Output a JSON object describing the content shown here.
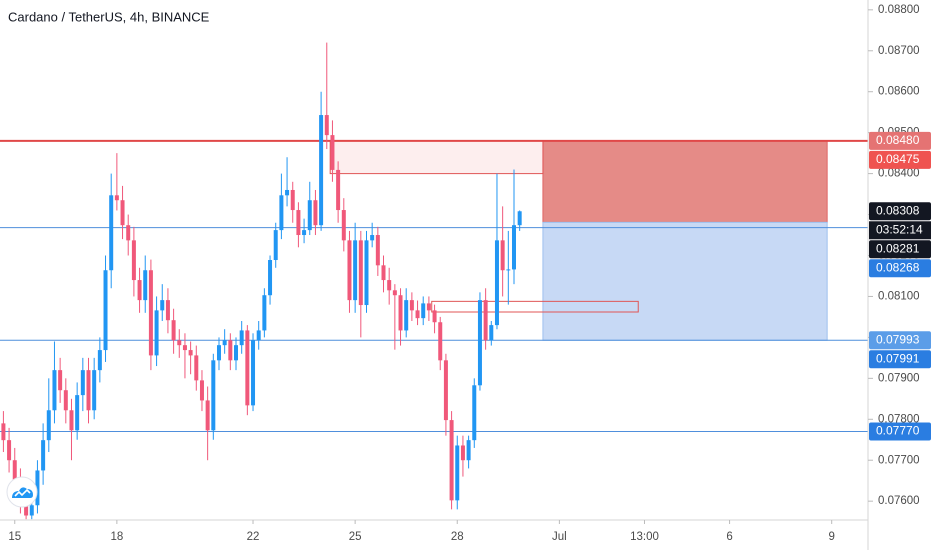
{
  "chart_data": {
    "type": "candlestick",
    "title": "Cardano / TetherUS, 4h, BINANCE",
    "up_color": "#2196f3",
    "down_color": "#f0587a",
    "xlim": [
      -2.6,
      150.4
    ],
    "xticks": [
      {
        "value": 0,
        "label": "15"
      },
      {
        "value": 18,
        "label": "18"
      },
      {
        "value": 42,
        "label": "22"
      },
      {
        "value": 60,
        "label": "25"
      },
      {
        "value": 78,
        "label": "28"
      },
      {
        "value": 96,
        "label": "Jul"
      },
      {
        "value": 111,
        "label": "13:00"
      },
      {
        "value": 126,
        "label": "6"
      },
      {
        "value": 144,
        "label": "9"
      }
    ],
    "ylim": [
      0.07554,
      0.08824
    ],
    "yticks": [
      {
        "value": 0.076,
        "label": "0.07600"
      },
      {
        "value": 0.077,
        "label": "0.07700"
      },
      {
        "value": 0.078,
        "label": "0.07800"
      },
      {
        "value": 0.079,
        "label": "0.07900"
      },
      {
        "value": 0.08,
        "label": "0.08000"
      },
      {
        "value": 0.081,
        "label": "0.08100"
      },
      {
        "value": 0.082,
        "label": "0.08200"
      },
      {
        "value": 0.083,
        "label": "0.08300"
      },
      {
        "value": 0.084,
        "label": "0.08400"
      },
      {
        "value": 0.085,
        "label": "0.08500"
      },
      {
        "value": 0.086,
        "label": "0.08600"
      },
      {
        "value": 0.087,
        "label": "0.08700"
      },
      {
        "value": 0.088,
        "label": "0.08800"
      }
    ],
    "x": [
      -2,
      -1,
      0,
      1,
      2,
      3,
      4,
      5,
      6,
      7,
      8,
      9,
      10,
      11,
      12,
      13,
      14,
      15,
      16,
      17,
      18,
      19,
      20,
      21,
      22,
      23,
      24,
      25,
      26,
      27,
      28,
      29,
      30,
      31,
      32,
      33,
      34,
      35,
      36,
      37,
      38,
      39,
      40,
      41,
      42,
      43,
      44,
      45,
      46,
      47,
      48,
      49,
      50,
      51,
      52,
      53,
      54,
      55,
      56,
      57,
      58,
      59,
      60,
      61,
      62,
      63,
      64,
      65,
      66,
      67,
      68,
      69,
      70,
      71,
      72,
      73,
      74,
      75,
      76,
      77,
      78,
      79,
      80,
      81,
      82,
      83,
      84,
      85,
      86,
      87,
      88,
      89
    ],
    "candles": [
      [
        0.0779,
        0.0782,
        0.0772,
        0.07749
      ],
      [
        0.07749,
        0.07779,
        0.0767,
        0.077
      ],
      [
        0.077,
        0.0773,
        0.0762,
        0.07651
      ],
      [
        0.07651,
        0.0768,
        0.0757,
        0.07602
      ],
      [
        0.07602,
        0.0763,
        0.07556,
        0.07565
      ],
      [
        0.07565,
        0.0763,
        0.07556,
        0.0759
      ],
      [
        0.0759,
        0.077,
        0.0757,
        0.07675
      ],
      [
        0.07675,
        0.0779,
        0.0764,
        0.07749
      ],
      [
        0.07749,
        0.079,
        0.0772,
        0.07822
      ],
      [
        0.07822,
        0.0799,
        0.0779,
        0.0792
      ],
      [
        0.0792,
        0.0795,
        0.0784,
        0.07871
      ],
      [
        0.07871,
        0.079,
        0.0779,
        0.07822
      ],
      [
        0.07822,
        0.0785,
        0.077,
        0.07773
      ],
      [
        0.07773,
        0.0789,
        0.0775,
        0.07859
      ],
      [
        0.07859,
        0.0795,
        0.0782,
        0.0792
      ],
      [
        0.0792,
        0.0795,
        0.0779,
        0.07822
      ],
      [
        0.07822,
        0.0795,
        0.078,
        0.0792
      ],
      [
        0.0792,
        0.08,
        0.0789,
        0.07969
      ],
      [
        0.07969,
        0.082,
        0.0794,
        0.08164
      ],
      [
        0.08164,
        0.084,
        0.0812,
        0.08347
      ],
      [
        0.08347,
        0.0845,
        0.0831,
        0.08335
      ],
      [
        0.08335,
        0.0837,
        0.0824,
        0.08274
      ],
      [
        0.08274,
        0.083,
        0.082,
        0.08237
      ],
      [
        0.08237,
        0.0827,
        0.081,
        0.0814
      ],
      [
        0.0814,
        0.0817,
        0.0806,
        0.08091
      ],
      [
        0.08091,
        0.082,
        0.0806,
        0.08164
      ],
      [
        0.08164,
        0.0819,
        0.0792,
        0.07956
      ],
      [
        0.07956,
        0.081,
        0.0793,
        0.08066
      ],
      [
        0.08066,
        0.0813,
        0.0804,
        0.08091
      ],
      [
        0.08091,
        0.0812,
        0.0801,
        0.08042
      ],
      [
        0.08042,
        0.0807,
        0.0796,
        0.07993
      ],
      [
        0.07993,
        0.0802,
        0.0795,
        0.07981
      ],
      [
        0.07981,
        0.0801,
        0.079,
        0.07969
      ],
      [
        0.07969,
        0.0799,
        0.0791,
        0.07956
      ],
      [
        0.07956,
        0.0798,
        0.0787,
        0.07895
      ],
      [
        0.07895,
        0.0792,
        0.0782,
        0.07846
      ],
      [
        0.07846,
        0.0788,
        0.077,
        0.07773
      ],
      [
        0.07773,
        0.0796,
        0.0775,
        0.07944
      ],
      [
        0.07944,
        0.08,
        0.0792,
        0.07981
      ],
      [
        0.07981,
        0.0802,
        0.0796,
        0.07993
      ],
      [
        0.07993,
        0.0801,
        0.0792,
        0.07944
      ],
      [
        0.07944,
        0.08,
        0.0792,
        0.07981
      ],
      [
        0.07981,
        0.0804,
        0.0796,
        0.08017
      ],
      [
        0.08017,
        0.0803,
        0.0781,
        0.07834
      ],
      [
        0.07834,
        0.0801,
        0.0782,
        0.07993
      ],
      [
        0.07993,
        0.0804,
        0.0797,
        0.08017
      ],
      [
        0.08017,
        0.0812,
        0.08,
        0.08103
      ],
      [
        0.08103,
        0.082,
        0.0808,
        0.08189
      ],
      [
        0.08189,
        0.0828,
        0.0817,
        0.08262
      ],
      [
        0.08262,
        0.084,
        0.0824,
        0.08347
      ],
      [
        0.08347,
        0.0844,
        0.0832,
        0.0836
      ],
      [
        0.0836,
        0.0838,
        0.0828,
        0.08311
      ],
      [
        0.08311,
        0.0833,
        0.0822,
        0.0825
      ],
      [
        0.0825,
        0.0829,
        0.0823,
        0.08262
      ],
      [
        0.08262,
        0.0838,
        0.0825,
        0.08335
      ],
      [
        0.08335,
        0.0836,
        0.0825,
        0.08274
      ],
      [
        0.08274,
        0.086,
        0.0826,
        0.08543
      ],
      [
        0.08543,
        0.0872,
        0.0846,
        0.08494
      ],
      [
        0.08494,
        0.0853,
        0.0838,
        0.08409
      ],
      [
        0.08409,
        0.0843,
        0.0828,
        0.08311
      ],
      [
        0.08311,
        0.0834,
        0.0821,
        0.08237
      ],
      [
        0.08237,
        0.0826,
        0.0806,
        0.08091
      ],
      [
        0.08091,
        0.0828,
        0.0806,
        0.08237
      ],
      [
        0.08237,
        0.0826,
        0.08,
        0.08079
      ],
      [
        0.08079,
        0.0826,
        0.0806,
        0.08237
      ],
      [
        0.08237,
        0.0828,
        0.0822,
        0.0825
      ],
      [
        0.0825,
        0.0827,
        0.0815,
        0.08176
      ],
      [
        0.08176,
        0.082,
        0.0811,
        0.0814
      ],
      [
        0.0814,
        0.0817,
        0.0808,
        0.08115
      ],
      [
        0.08115,
        0.0813,
        0.0797,
        0.08103
      ],
      [
        0.08103,
        0.0812,
        0.0798,
        0.08017
      ],
      [
        0.08017,
        0.0812,
        0.08,
        0.08091
      ],
      [
        0.08091,
        0.0811,
        0.0804,
        0.08066
      ],
      [
        0.08066,
        0.0809,
        0.0803,
        0.08047
      ],
      [
        0.08047,
        0.081,
        0.0803,
        0.08083
      ],
      [
        0.08083,
        0.081,
        0.0804,
        0.08066
      ],
      [
        0.08066,
        0.0808,
        0.0801,
        0.08037
      ],
      [
        0.08037,
        0.0805,
        0.0792,
        0.07944
      ],
      [
        0.07944,
        0.0796,
        0.0776,
        0.07798
      ],
      [
        0.07798,
        0.0782,
        0.0758,
        0.07602
      ],
      [
        0.07602,
        0.0776,
        0.0758,
        0.07736
      ],
      [
        0.07736,
        0.0776,
        0.0766,
        0.077
      ],
      [
        0.077,
        0.0776,
        0.0768,
        0.07749
      ],
      [
        0.07749,
        0.079,
        0.0773,
        0.07883
      ],
      [
        0.07883,
        0.0811,
        0.0787,
        0.08091
      ],
      [
        0.08091,
        0.0812,
        0.0797,
        0.07993
      ],
      [
        0.07993,
        0.0804,
        0.0798,
        0.0803
      ],
      [
        0.0803,
        0.084,
        0.0802,
        0.08237
      ],
      [
        0.08237,
        0.0832,
        0.081,
        0.08164
      ],
      [
        0.08164,
        0.0826,
        0.0808,
        0.08166
      ],
      [
        0.08166,
        0.0841,
        0.0813,
        0.08274
      ],
      [
        0.08274,
        0.0831,
        0.0826,
        0.08308
      ]
    ],
    "zones": [
      {
        "x": [
          93.1,
          143.2
        ],
        "y": [
          0.08281,
          0.0848
        ],
        "fill": "#e58b87",
        "stroke": "#e06666"
      },
      {
        "x": [
          93.1,
          143.2
        ],
        "y": [
          0.07993,
          0.08281
        ],
        "fill": "#c7d9f5",
        "stroke": "#9ec0ee"
      },
      {
        "x": [
          55.6,
          93.1
        ],
        "y": [
          0.084,
          0.0848
        ],
        "fill": "#fdeeee",
        "stroke": "#e05555"
      },
      {
        "x": [
          73.5,
          109.9
        ],
        "y": [
          0.08062,
          0.08088
        ],
        "fill": "none",
        "stroke": "#e05555"
      }
    ],
    "lines": [
      {
        "value": 0.0848,
        "color": "#e04848",
        "width": 2
      },
      {
        "value": 0.08268,
        "color": "#4f8fdc",
        "width": 1
      },
      {
        "value": 0.07993,
        "color": "#4f8fdc",
        "width": 1
      },
      {
        "value": 0.0777,
        "color": "#4f8fdc",
        "width": 1
      }
    ],
    "price_labels": [
      {
        "value": 0.0848,
        "label": "0.08480",
        "color": "#e57373"
      },
      {
        "value": 0.08475,
        "label": "0.08475",
        "color": "#ef5350"
      },
      {
        "value": 0.08308,
        "label": "0.08308",
        "color": "#131722"
      },
      {
        "value": 0.08281,
        "label": "0.08281",
        "color": "#131722"
      },
      {
        "value": 0.08268,
        "label": "0.08268",
        "color": "#2a7de1"
      },
      {
        "value": 0.07993,
        "label": "0.07993",
        "color": "#5b9de8"
      },
      {
        "value": 0.07991,
        "label": "0.07991",
        "color": "#2a7de1"
      },
      {
        "value": 0.0777,
        "label": "0.07770",
        "color": "#2a7de1"
      }
    ],
    "countdown": "03:52:14"
  }
}
